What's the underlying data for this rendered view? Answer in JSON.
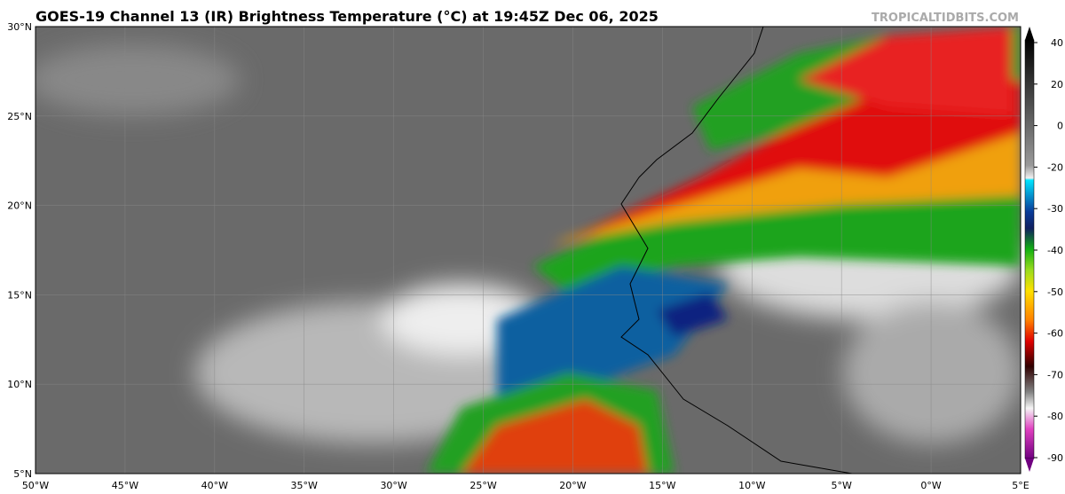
{
  "header": {
    "title": "GOES-19 Channel 13 (IR) Brightness Temperature (°C) at 19:45Z Dec 06, 2025",
    "watermark": "TROPICALTIDBITS.COM"
  },
  "map": {
    "lon_ticks": [
      "50°W",
      "45°W",
      "40°W",
      "35°W",
      "30°W",
      "25°W",
      "20°W",
      "15°W",
      "10°W",
      "5°W",
      "0°W",
      "5°E"
    ],
    "lat_ticks": [
      "30°N",
      "25°N",
      "20°N",
      "15°N",
      "10°N",
      "5°N"
    ],
    "colorbar": {
      "ticks": [
        40,
        20,
        0,
        -20,
        -30,
        -40,
        -50,
        -60,
        -70,
        -80,
        -90
      ]
    }
  }
}
